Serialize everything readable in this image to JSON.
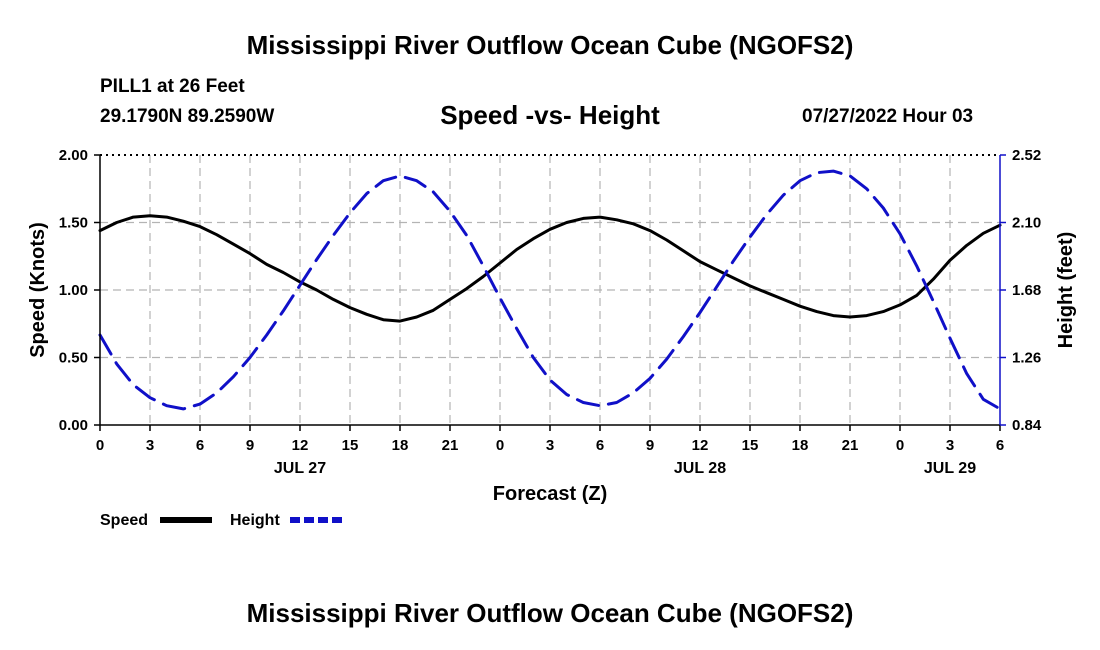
{
  "header": {
    "title": "Mississippi River Outflow Ocean Cube (NGOFS2)",
    "station": "PILL1 at 26 Feet",
    "coords": "29.1790N  89.2590W",
    "subtitle": "Speed -vs- Height",
    "run_time": "07/27/2022 Hour 03",
    "bottom_title": "Mississippi River Outflow Ocean Cube (NGOFS2)"
  },
  "chart_data": {
    "type": "line",
    "title": "Speed -vs- Height",
    "xlabel": "Forecast (Z)",
    "ylabel_left": "Speed (Knots)",
    "ylabel_right": "Height (feet)",
    "x_range_hours": [
      0,
      54
    ],
    "x_tick_labels": [
      "0",
      "3",
      "6",
      "9",
      "12",
      "15",
      "18",
      "21",
      "0",
      "3",
      "6",
      "9",
      "12",
      "15",
      "18",
      "21",
      "0",
      "3",
      "6"
    ],
    "date_labels": [
      {
        "label": "JUL 27",
        "hour": 12
      },
      {
        "label": "JUL 28",
        "hour": 36
      },
      {
        "label": "JUL 29",
        "hour": 51
      }
    ],
    "y_left": {
      "min": 0,
      "max": 2.0,
      "ticks": [
        "0.00",
        "0.50",
        "1.00",
        "1.50",
        "2.00"
      ]
    },
    "y_right": {
      "min": 0.84,
      "max": 2.52,
      "ticks": [
        "0.84",
        "1.26",
        "1.68",
        "2.10",
        "2.52"
      ]
    },
    "grid": true,
    "series": [
      {
        "name": "Speed",
        "axis": "left",
        "color": "#000000",
        "style": "solid",
        "x": [
          0,
          1,
          2,
          3,
          4,
          5,
          6,
          7,
          8,
          9,
          10,
          11,
          12,
          13,
          14,
          15,
          16,
          17,
          18,
          19,
          20,
          21,
          22,
          23,
          24,
          25,
          26,
          27,
          28,
          29,
          30,
          31,
          32,
          33,
          34,
          35,
          36,
          37,
          38,
          39,
          40,
          41,
          42,
          43,
          44,
          45,
          46,
          47,
          48,
          49,
          50,
          51,
          52,
          53,
          54
        ],
        "values": [
          1.44,
          1.5,
          1.54,
          1.55,
          1.54,
          1.51,
          1.47,
          1.41,
          1.34,
          1.27,
          1.19,
          1.13,
          1.06,
          1.0,
          0.93,
          0.87,
          0.82,
          0.78,
          0.77,
          0.8,
          0.85,
          0.93,
          1.01,
          1.1,
          1.2,
          1.3,
          1.38,
          1.45,
          1.5,
          1.53,
          1.54,
          1.52,
          1.49,
          1.44,
          1.37,
          1.29,
          1.21,
          1.15,
          1.09,
          1.03,
          0.98,
          0.93,
          0.88,
          0.84,
          0.81,
          0.8,
          0.81,
          0.84,
          0.89,
          0.96,
          1.08,
          1.22,
          1.33,
          1.42,
          1.48
        ]
      },
      {
        "name": "Height",
        "axis": "right",
        "color": "#1010c8",
        "style": "dashed",
        "x": [
          0,
          1,
          2,
          3,
          4,
          5,
          6,
          7,
          8,
          9,
          10,
          11,
          12,
          13,
          14,
          15,
          16,
          17,
          18,
          19,
          20,
          21,
          22,
          23,
          24,
          25,
          26,
          27,
          28,
          29,
          30,
          31,
          32,
          33,
          34,
          35,
          36,
          37,
          38,
          39,
          40,
          41,
          42,
          43,
          44,
          45,
          46,
          47,
          48,
          49,
          50,
          51,
          52,
          53,
          54
        ],
        "values": [
          1.4,
          1.22,
          1.09,
          1.01,
          0.96,
          0.94,
          0.97,
          1.04,
          1.14,
          1.26,
          1.4,
          1.55,
          1.71,
          1.87,
          2.02,
          2.16,
          2.28,
          2.36,
          2.39,
          2.36,
          2.29,
          2.17,
          2.02,
          1.83,
          1.63,
          1.44,
          1.26,
          1.12,
          1.03,
          0.98,
          0.96,
          0.98,
          1.04,
          1.13,
          1.25,
          1.39,
          1.54,
          1.7,
          1.86,
          2.01,
          2.15,
          2.27,
          2.36,
          2.41,
          2.42,
          2.39,
          2.31,
          2.19,
          2.03,
          1.83,
          1.61,
          1.38,
          1.16,
          1.0,
          0.94
        ]
      }
    ],
    "legend": [
      {
        "label": "Speed",
        "color": "#000000",
        "style": "solid"
      },
      {
        "label": "Height",
        "color": "#1010c8",
        "style": "dashed"
      }
    ]
  }
}
